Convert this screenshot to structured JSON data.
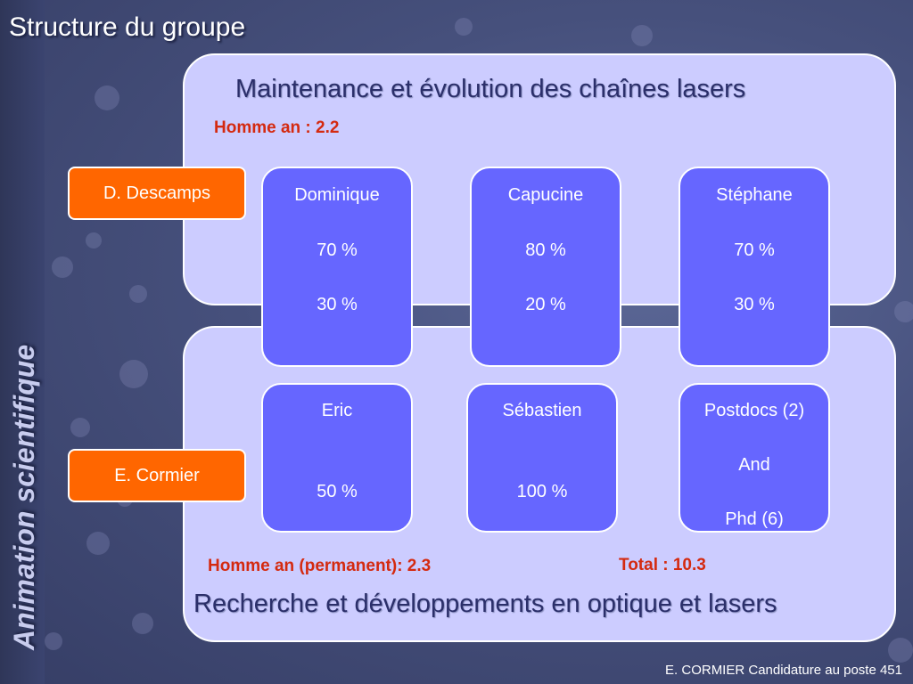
{
  "slide_title": "Structure du groupe",
  "vertical_title": "Animation scientifique",
  "top_panel": {
    "heading": "Maintenance et évolution des chaînes lasers",
    "note": "Homme an : 2.2"
  },
  "bottom_panel": {
    "heading": "Recherche et développements  en optique et lasers",
    "note_permanent": "Homme an (permanent): 2.3",
    "note_total": "Total  : 10.3"
  },
  "leaders": [
    "D. Descamps",
    "E. Cormier"
  ],
  "top_people": [
    {
      "name": "Dominique",
      "line2": "70 %",
      "line3": "30 %"
    },
    {
      "name": "Capucine",
      "line2": "80 %",
      "line3": "20 %"
    },
    {
      "name": "Stéphane",
      "line2": "70 %",
      "line3": "30 %"
    }
  ],
  "bottom_people": [
    {
      "name": "Eric",
      "line2": "",
      "line3": "50 %"
    },
    {
      "name": "Sébastien",
      "line2": "",
      "line3": "100 %"
    },
    {
      "name": "Postdocs (2)",
      "line2": "And",
      "line3": "Phd (6)"
    }
  ],
  "footer": "E. CORMIER Candidature au poste 451",
  "colors": {
    "panel_fill": "#ccccff",
    "card_fill": "#6666ff",
    "leader_fill": "#ff6600",
    "note_red": "#d42a10"
  }
}
